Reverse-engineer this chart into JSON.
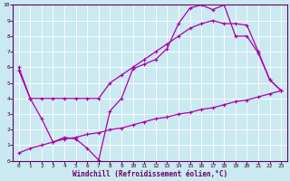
{
  "xlabel": "Windchill (Refroidissement éolien,°C)",
  "bg_color": "#cbe9f0",
  "line_color": "#aa00aa",
  "grid_color": "#ffffff",
  "xlim": [
    -0.5,
    23.5
  ],
  "ylim": [
    0,
    10
  ],
  "xticks": [
    0,
    1,
    2,
    3,
    4,
    5,
    6,
    7,
    8,
    9,
    10,
    11,
    12,
    13,
    14,
    15,
    16,
    17,
    18,
    19,
    20,
    21,
    22,
    23
  ],
  "yticks": [
    0,
    1,
    2,
    3,
    4,
    5,
    6,
    7,
    8,
    9,
    10
  ],
  "line1_x": [
    0,
    1,
    2,
    3,
    4,
    5,
    6,
    7,
    8,
    9,
    10,
    11,
    12,
    13,
    14,
    15,
    16,
    17,
    18,
    19,
    20,
    21,
    22,
    23
  ],
  "line1_y": [
    6.0,
    4.0,
    2.7,
    1.2,
    1.5,
    1.4,
    0.8,
    0.05,
    3.2,
    4.0,
    5.9,
    6.2,
    6.5,
    7.2,
    8.8,
    9.8,
    10.0,
    9.7,
    10.0,
    8.0,
    8.0,
    6.9,
    5.2,
    4.5
  ],
  "line2_x": [
    0,
    1,
    2,
    3,
    4,
    5,
    6,
    7,
    8,
    9,
    10,
    11,
    12,
    13,
    14,
    15,
    16,
    17,
    18,
    19,
    20,
    21,
    22,
    23
  ],
  "line2_y": [
    5.8,
    4.0,
    4.0,
    4.0,
    4.0,
    4.0,
    4.0,
    4.0,
    5.0,
    5.5,
    6.0,
    6.5,
    7.0,
    7.5,
    8.0,
    8.5,
    8.8,
    9.0,
    8.8,
    8.8,
    8.7,
    7.0,
    5.2,
    4.5
  ],
  "line3_x": [
    0,
    1,
    2,
    3,
    4,
    5,
    6,
    7,
    8,
    9,
    10,
    11,
    12,
    13,
    14,
    15,
    16,
    17,
    18,
    19,
    20,
    21,
    22,
    23
  ],
  "line3_y": [
    0.5,
    0.8,
    1.0,
    1.2,
    1.4,
    1.5,
    1.7,
    1.8,
    2.0,
    2.1,
    2.3,
    2.5,
    2.7,
    2.8,
    3.0,
    3.1,
    3.3,
    3.4,
    3.6,
    3.8,
    3.9,
    4.1,
    4.3,
    4.5
  ],
  "tick_labelsize": 4.5,
  "xlabel_fontsize": 5.5,
  "xlabel_color": "#660066"
}
